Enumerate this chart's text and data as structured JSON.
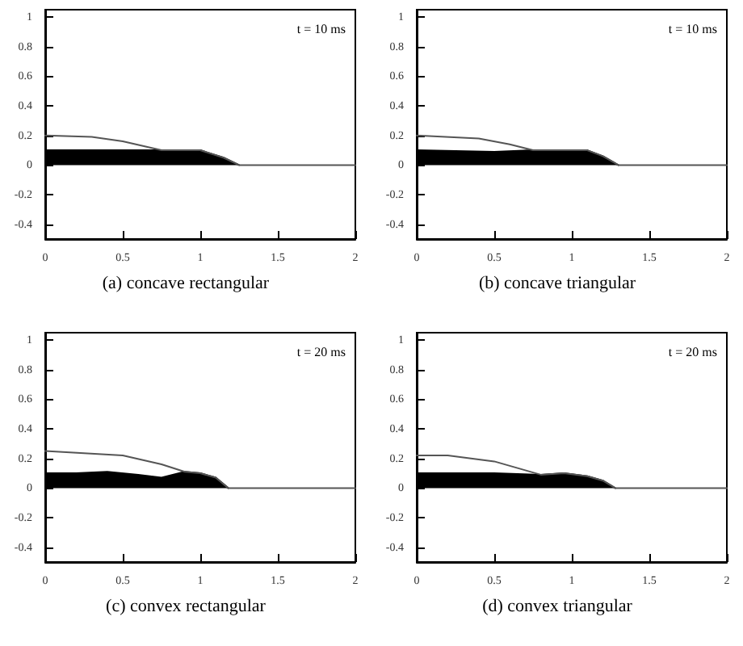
{
  "chart_data": [
    {
      "type": "line",
      "title": "(a) concave rectangular",
      "annotations": [
        "t = 10 ms"
      ],
      "xlim": [
        0,
        2
      ],
      "xticks": [
        0,
        0.5,
        1,
        1.5,
        2
      ],
      "ylim": [
        -0.5,
        1.05
      ],
      "yticks": [
        -0.4,
        -0.2,
        0,
        0.2,
        0.4,
        0.6,
        0.8,
        1
      ],
      "series": [
        {
          "type": "area",
          "color": "#000000",
          "x": [
            0,
            0.5,
            0.75,
            1.0,
            1.15,
            1.25
          ],
          "values": [
            0.1,
            0.1,
            0.1,
            0.1,
            0.05,
            0
          ]
        },
        {
          "color": "#555555",
          "x": [
            0,
            0.3,
            0.5,
            0.75,
            1.0,
            1.15,
            1.25,
            2
          ],
          "values": [
            0.2,
            0.19,
            0.16,
            0.1,
            0.1,
            0.05,
            0,
            0
          ]
        }
      ]
    },
    {
      "type": "line",
      "title": "(b) concave triangular",
      "annotations": [
        "t = 10 ms"
      ],
      "xlim": [
        0,
        2
      ],
      "xticks": [
        0,
        0.5,
        1,
        1.5,
        2
      ],
      "ylim": [
        -0.5,
        1.05
      ],
      "yticks": [
        -0.4,
        -0.2,
        0,
        0.2,
        0.4,
        0.6,
        0.8,
        1
      ],
      "series": [
        {
          "type": "area",
          "color": "#000000",
          "x": [
            0,
            0.5,
            0.75,
            1.1,
            1.2,
            1.3
          ],
          "values": [
            0.1,
            0.09,
            0.1,
            0.1,
            0.06,
            0
          ]
        },
        {
          "color": "#555555",
          "x": [
            0,
            0.4,
            0.6,
            0.75,
            1.1,
            1.2,
            1.3,
            2
          ],
          "values": [
            0.2,
            0.18,
            0.14,
            0.1,
            0.1,
            0.06,
            0,
            0
          ]
        }
      ]
    },
    {
      "type": "line",
      "title": "(c) convex rectangular",
      "annotations": [
        "t = 20 ms"
      ],
      "xlim": [
        0,
        2
      ],
      "xticks": [
        0,
        0.5,
        1,
        1.5,
        2
      ],
      "ylim": [
        -0.5,
        1.05
      ],
      "yticks": [
        -0.4,
        -0.2,
        0,
        0.2,
        0.4,
        0.6,
        0.8,
        1
      ],
      "series": [
        {
          "type": "area",
          "color": "#000000",
          "x": [
            0,
            0.2,
            0.4,
            0.6,
            0.75,
            0.9,
            1.0,
            1.1,
            1.18
          ],
          "values": [
            0.1,
            0.1,
            0.11,
            0.09,
            0.07,
            0.11,
            0.1,
            0.07,
            0
          ]
        },
        {
          "color": "#555555",
          "x": [
            0,
            0.5,
            0.75,
            0.9,
            1.0,
            1.1,
            1.18,
            2
          ],
          "values": [
            0.25,
            0.22,
            0.16,
            0.11,
            0.1,
            0.07,
            0,
            0
          ]
        }
      ]
    },
    {
      "type": "line",
      "title": "(d) convex triangular",
      "annotations": [
        "t = 20 ms"
      ],
      "xlim": [
        0,
        2
      ],
      "xticks": [
        0,
        0.5,
        1,
        1.5,
        2
      ],
      "ylim": [
        -0.5,
        1.05
      ],
      "yticks": [
        -0.4,
        -0.2,
        0,
        0.2,
        0.4,
        0.6,
        0.8,
        1
      ],
      "series": [
        {
          "type": "area",
          "color": "#000000",
          "x": [
            0,
            0.5,
            0.8,
            0.95,
            1.1,
            1.2,
            1.28
          ],
          "values": [
            0.1,
            0.1,
            0.09,
            0.1,
            0.08,
            0.05,
            0
          ]
        },
        {
          "color": "#555555",
          "x": [
            0,
            0.2,
            0.5,
            0.8,
            0.95,
            1.1,
            1.2,
            1.28,
            2
          ],
          "values": [
            0.22,
            0.22,
            0.18,
            0.09,
            0.1,
            0.08,
            0.05,
            0,
            0
          ]
        }
      ]
    }
  ]
}
